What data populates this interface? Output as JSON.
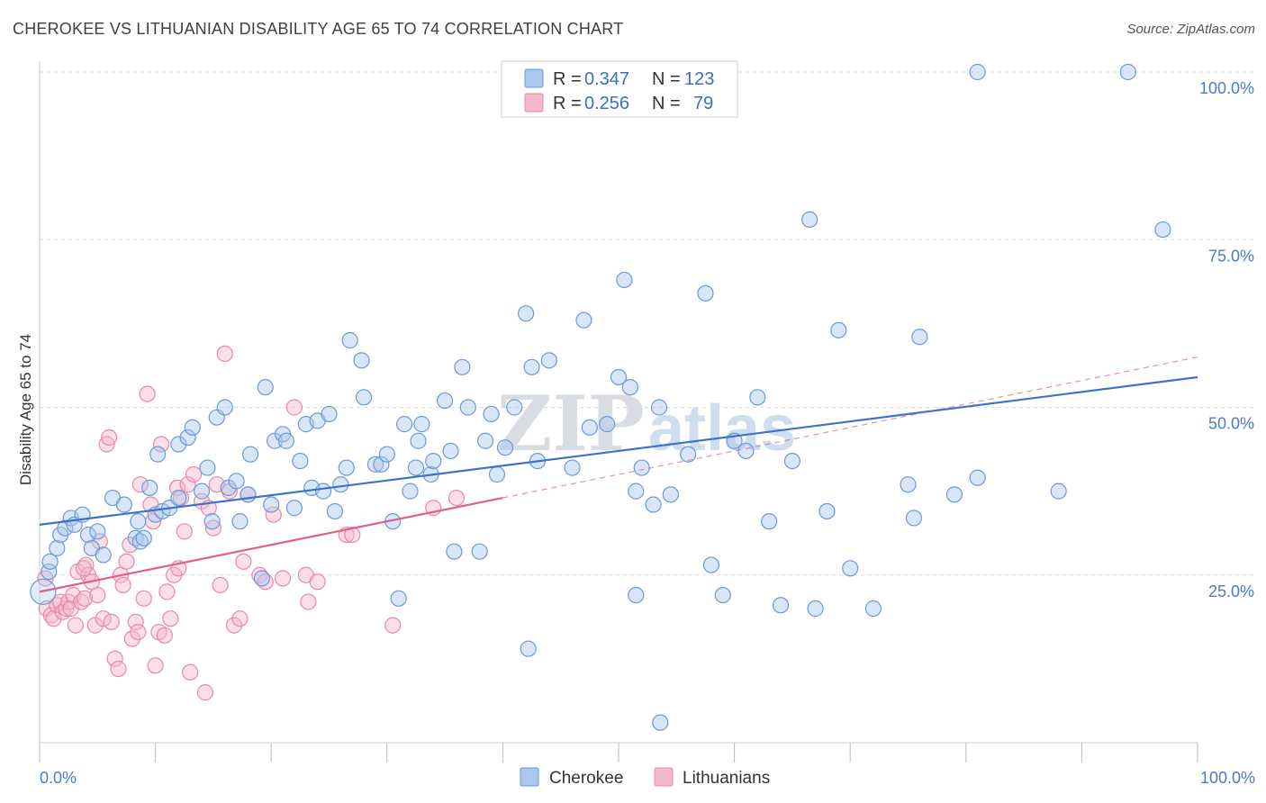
{
  "title": "CHEROKEE VS LITHUANIAN DISABILITY AGE 65 TO 74 CORRELATION CHART",
  "source": "Source: ZipAtlas.com",
  "watermark": {
    "part1": "ZIP",
    "part2": "atlas"
  },
  "legend": {
    "r_label": "R =",
    "n_label": "N =",
    "entries": [
      {
        "r": "0.347",
        "n": "123"
      },
      {
        "r": "0.256",
        "n": "79"
      }
    ]
  },
  "bottom_legend": [
    "Cherokee",
    "Lithuanians"
  ],
  "colors": {
    "cherokee_fill": "#aac8ef",
    "cherokee_stroke": "#6a9ad8",
    "cherokee_line": "#3a73cc",
    "lithuanian_fill": "#f5b8cb",
    "lithuanian_stroke": "#e889a7",
    "lithuanian_line": "#e0608a",
    "tick_label": "#4a7cc7"
  },
  "chart_data": {
    "type": "scatter",
    "title": "CHEROKEE VS LITHUANIAN DISABILITY AGE 65 TO 74 CORRELATION CHART",
    "xlabel": "",
    "ylabel": "Disability Age 65 to 74",
    "xlim": [
      0,
      100
    ],
    "ylim": [
      0,
      100
    ],
    "x_tick_labels": [
      "0.0%",
      "100.0%"
    ],
    "y_ticks": [
      25,
      50,
      75,
      100
    ],
    "y_tick_labels": [
      "25.0%",
      "50.0%",
      "75.0%",
      "100.0%"
    ],
    "grid": true,
    "legend_position": "top-center",
    "series": [
      {
        "name": "Cherokee",
        "r": 0.347,
        "n": 123,
        "trend": {
          "x0": 0,
          "y0": 32.5,
          "x1": 100,
          "y1": 54.5
        },
        "points": [
          [
            0.8,
            25.5
          ],
          [
            0.9,
            27
          ],
          [
            1.5,
            29
          ],
          [
            1.8,
            31
          ],
          [
            2.2,
            32
          ],
          [
            2.7,
            33.5
          ],
          [
            3,
            32.5
          ],
          [
            3.7,
            34
          ],
          [
            4.2,
            31
          ],
          [
            4.5,
            29
          ],
          [
            5,
            31.5
          ],
          [
            5.5,
            28
          ],
          [
            6.3,
            36.5
          ],
          [
            7.3,
            35.5
          ],
          [
            8.3,
            30.5
          ],
          [
            8.5,
            33
          ],
          [
            8.7,
            30
          ],
          [
            9,
            30.5
          ],
          [
            9.5,
            38
          ],
          [
            10,
            34
          ],
          [
            10.2,
            43
          ],
          [
            10.6,
            34.5
          ],
          [
            11.2,
            35
          ],
          [
            12,
            36.5
          ],
          [
            12,
            44.5
          ],
          [
            12.8,
            45.5
          ],
          [
            13.2,
            47
          ],
          [
            14,
            37.5
          ],
          [
            14.5,
            41
          ],
          [
            14.9,
            33
          ],
          [
            15.3,
            48.5
          ],
          [
            16,
            50
          ],
          [
            16.3,
            38
          ],
          [
            17,
            39
          ],
          [
            17.3,
            33
          ],
          [
            18,
            37
          ],
          [
            18.2,
            43
          ],
          [
            19.2,
            24.5
          ],
          [
            19.5,
            53
          ],
          [
            20,
            35.5
          ],
          [
            20.3,
            45
          ],
          [
            21,
            46
          ],
          [
            21.3,
            45
          ],
          [
            22,
            35
          ],
          [
            22.5,
            42
          ],
          [
            23,
            47.5
          ],
          [
            23.5,
            38
          ],
          [
            24,
            48
          ],
          [
            24.5,
            37.5
          ],
          [
            25,
            49
          ],
          [
            25.5,
            34.5
          ],
          [
            26,
            38.5
          ],
          [
            26.5,
            41
          ],
          [
            26.8,
            60
          ],
          [
            27.8,
            57
          ],
          [
            28,
            51.5
          ],
          [
            29,
            41.5
          ],
          [
            29.5,
            41.5
          ],
          [
            30,
            43
          ],
          [
            30.5,
            33
          ],
          [
            31,
            21.5
          ],
          [
            31.5,
            47.5
          ],
          [
            32,
            37.5
          ],
          [
            32.5,
            41
          ],
          [
            32.7,
            45
          ],
          [
            33,
            47.5
          ],
          [
            33.8,
            40
          ],
          [
            34,
            42
          ],
          [
            35,
            51
          ],
          [
            35.5,
            43.5
          ],
          [
            35.8,
            28.5
          ],
          [
            36.5,
            56
          ],
          [
            37,
            50
          ],
          [
            38,
            28.5
          ],
          [
            38.5,
            45
          ],
          [
            39,
            49
          ],
          [
            39.5,
            40
          ],
          [
            40.2,
            44
          ],
          [
            41,
            50
          ],
          [
            42,
            64
          ],
          [
            42.5,
            56
          ],
          [
            43,
            42
          ],
          [
            44,
            57
          ],
          [
            46,
            41
          ],
          [
            47,
            63
          ],
          [
            47.5,
            47
          ],
          [
            49,
            47.5
          ],
          [
            50,
            54.5
          ],
          [
            50.5,
            69
          ],
          [
            51,
            53
          ],
          [
            51.5,
            37.5
          ],
          [
            51.5,
            22
          ],
          [
            52,
            41
          ],
          [
            53,
            35.5
          ],
          [
            53.5,
            50
          ],
          [
            54.5,
            37
          ],
          [
            56,
            43
          ],
          [
            57.5,
            67
          ],
          [
            58,
            26.5
          ],
          [
            59,
            22
          ],
          [
            60,
            45
          ],
          [
            61,
            43.5
          ],
          [
            62,
            51.5
          ],
          [
            63,
            33
          ],
          [
            64,
            20.5
          ],
          [
            65,
            42
          ],
          [
            66.5,
            78
          ],
          [
            67,
            20
          ],
          [
            68,
            34.5
          ],
          [
            69,
            61.5
          ],
          [
            70,
            26
          ],
          [
            72,
            20
          ],
          [
            75,
            38.5
          ],
          [
            75.5,
            33.5
          ],
          [
            76,
            60.5
          ],
          [
            79,
            37
          ],
          [
            81,
            39.5
          ],
          [
            81,
            100
          ],
          [
            88,
            37.5
          ],
          [
            94,
            100
          ],
          [
            97,
            76.5
          ],
          [
            42.2,
            14
          ],
          [
            53.6,
            3
          ]
        ]
      },
      {
        "name": "Lithuanians",
        "r": 0.256,
        "n": 79,
        "trend": {
          "x0": 0,
          "y0": 22.5,
          "x1": 40,
          "y1": 36.5
        },
        "trend_dashed": {
          "x0": 40,
          "y0": 36.5,
          "x1": 100,
          "y1": 57.5
        },
        "points": [
          [
            0.5,
            24.5
          ],
          [
            0.6,
            20
          ],
          [
            1,
            19
          ],
          [
            1.2,
            18.5
          ],
          [
            1.5,
            20.5
          ],
          [
            1.8,
            21
          ],
          [
            2,
            19.5
          ],
          [
            2.3,
            20
          ],
          [
            2.5,
            21
          ],
          [
            2.7,
            20
          ],
          [
            2.9,
            22
          ],
          [
            3.1,
            17.5
          ],
          [
            3.3,
            25.5
          ],
          [
            3.6,
            21
          ],
          [
            3.9,
            21.5
          ],
          [
            4,
            26.5
          ],
          [
            4.2,
            25
          ],
          [
            4.5,
            24
          ],
          [
            4.8,
            17.5
          ],
          [
            5,
            22
          ],
          [
            5.2,
            30
          ],
          [
            5.5,
            18.5
          ],
          [
            5.8,
            44.5
          ],
          [
            6,
            45.5
          ],
          [
            6.2,
            18
          ],
          [
            6.5,
            12.5
          ],
          [
            6.8,
            11
          ],
          [
            7,
            25
          ],
          [
            7.2,
            23.5
          ],
          [
            7.5,
            27
          ],
          [
            7.8,
            29.5
          ],
          [
            8,
            15.5
          ],
          [
            8.3,
            18
          ],
          [
            8.5,
            16.5
          ],
          [
            8.7,
            38.5
          ],
          [
            9,
            21.5
          ],
          [
            9.3,
            52
          ],
          [
            9.6,
            35.5
          ],
          [
            10,
            11.5
          ],
          [
            10.3,
            16.5
          ],
          [
            10.5,
            44.5
          ],
          [
            10.8,
            16
          ],
          [
            11,
            22.5
          ],
          [
            11.3,
            18.5
          ],
          [
            11.6,
            25
          ],
          [
            11.9,
            38
          ],
          [
            12.2,
            36.5
          ],
          [
            12.5,
            31.5
          ],
          [
            12.8,
            38.5
          ],
          [
            13,
            10.5
          ],
          [
            13.3,
            40
          ],
          [
            14,
            36
          ],
          [
            14.3,
            7.5
          ],
          [
            14.6,
            35
          ],
          [
            15,
            32
          ],
          [
            15.3,
            38.5
          ],
          [
            15.6,
            23.5
          ],
          [
            16,
            58
          ],
          [
            16.4,
            37.5
          ],
          [
            16.8,
            17.5
          ],
          [
            17.3,
            18.5
          ],
          [
            17.6,
            27
          ],
          [
            18,
            37
          ],
          [
            19,
            25
          ],
          [
            19.5,
            24
          ],
          [
            20.2,
            34
          ],
          [
            21,
            24.5
          ],
          [
            22,
            50
          ],
          [
            23,
            25
          ],
          [
            23.2,
            21
          ],
          [
            24,
            24
          ],
          [
            26.5,
            31
          ],
          [
            27,
            31
          ],
          [
            30.5,
            17.5
          ],
          [
            34,
            35
          ],
          [
            36,
            36.5
          ],
          [
            3.8,
            26
          ],
          [
            9.8,
            33
          ],
          [
            12,
            26
          ]
        ]
      }
    ]
  }
}
